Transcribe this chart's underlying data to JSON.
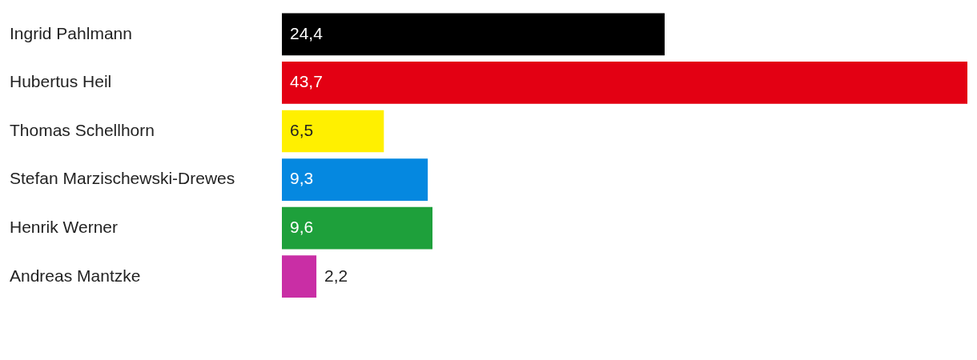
{
  "chart_data": {
    "type": "bar",
    "orientation": "horizontal",
    "categories": [
      "Ingrid Pahlmann",
      "Hubertus Heil",
      "Thomas Schellhorn",
      "Stefan Marzischewski-Drewes",
      "Henrik Werner",
      "Andreas Mantzke"
    ],
    "values": [
      24.4,
      43.7,
      6.5,
      9.3,
      9.6,
      2.2
    ],
    "colors": [
      "#000000",
      "#e30013",
      "#fff000",
      "#0588e0",
      "#1ea03b",
      "#c92ea5"
    ],
    "value_labels": [
      "24,4",
      "43,7",
      "6,5",
      "9,3",
      "9,6",
      "2,2"
    ]
  }
}
